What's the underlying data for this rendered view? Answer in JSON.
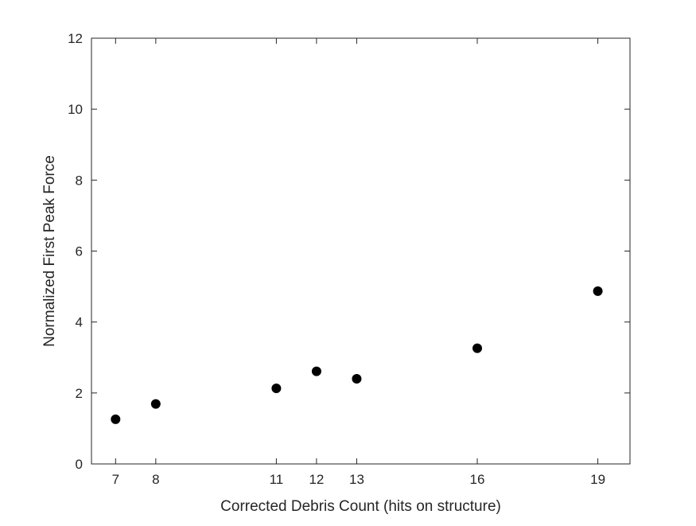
{
  "chart_data": {
    "type": "scatter",
    "title": "",
    "xlabel": "Corrected Debris Count (hits on structure)",
    "ylabel": "Normalized First Peak Force",
    "xlim": [
      6.4,
      19.8
    ],
    "ylim": [
      0,
      12
    ],
    "xticks": [
      7,
      8,
      11,
      12,
      13,
      16,
      19
    ],
    "yticks": [
      0,
      2,
      4,
      6,
      8,
      10,
      12
    ],
    "grid": false,
    "box": true,
    "series": [
      {
        "marker": "filled-circle",
        "color": "#000000",
        "points": [
          {
            "x": 7,
            "y": 1.26
          },
          {
            "x": 8,
            "y": 1.69
          },
          {
            "x": 11,
            "y": 2.13
          },
          {
            "x": 12,
            "y": 2.61
          },
          {
            "x": 13,
            "y": 2.4
          },
          {
            "x": 16,
            "y": 3.26
          },
          {
            "x": 19,
            "y": 4.87
          }
        ]
      }
    ]
  },
  "colors": {
    "axis": "#262626",
    "marker": "#000000",
    "background": "#ffffff"
  }
}
